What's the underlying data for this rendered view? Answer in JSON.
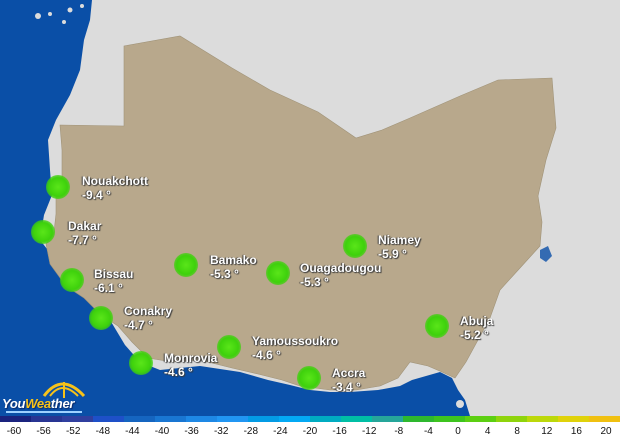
{
  "map": {
    "colors": {
      "ocean": "#0a4fa7",
      "land_region": "#b8a88c",
      "land_other": "#dcdcdc",
      "city_marker": "#3ed10c",
      "label_text": "#ffffff"
    },
    "cities": [
      {
        "name": "Nouakchott",
        "temp": "-9.4 °"
      },
      {
        "name": "Dakar",
        "temp": "-7.7 °"
      },
      {
        "name": "Bissau",
        "temp": "-6.1 °"
      },
      {
        "name": "Conakry",
        "temp": "-4.7 °"
      },
      {
        "name": "Monrovia",
        "temp": "-4.6 °"
      },
      {
        "name": "Bamako",
        "temp": "-5.3 °"
      },
      {
        "name": "Ouagadougou",
        "temp": "-5.3 °"
      },
      {
        "name": "Niamey",
        "temp": "-5.9 °"
      },
      {
        "name": "Yamoussoukro",
        "temp": "-4.6 °"
      },
      {
        "name": "Accra",
        "temp": "-3.4 °"
      },
      {
        "name": "Abuja",
        "temp": "-5.2 °"
      }
    ]
  },
  "logo": {
    "part1": "You",
    "part2": "Wea",
    "part3": "ther"
  },
  "scale": {
    "labels": [
      "-60",
      "-56",
      "-52",
      "-48",
      "-44",
      "-40",
      "-36",
      "-32",
      "-28",
      "-24",
      "-20",
      "-16",
      "-12",
      "-8",
      "-4",
      "0",
      "4",
      "8",
      "12",
      "16",
      "20"
    ],
    "colors": [
      "#1a237e",
      "#283593",
      "#303f9f",
      "#1e50c8",
      "#1565c0",
      "#1976d2",
      "#1e88e5",
      "#2196f3",
      "#039be5",
      "#03a9f4",
      "#00acc1",
      "#00bfa5",
      "#26a69a",
      "#2eb82e",
      "#3ec41e",
      "#5ccf12",
      "#8fd40c",
      "#bcd80a",
      "#e0d20a",
      "#f0c010"
    ]
  }
}
